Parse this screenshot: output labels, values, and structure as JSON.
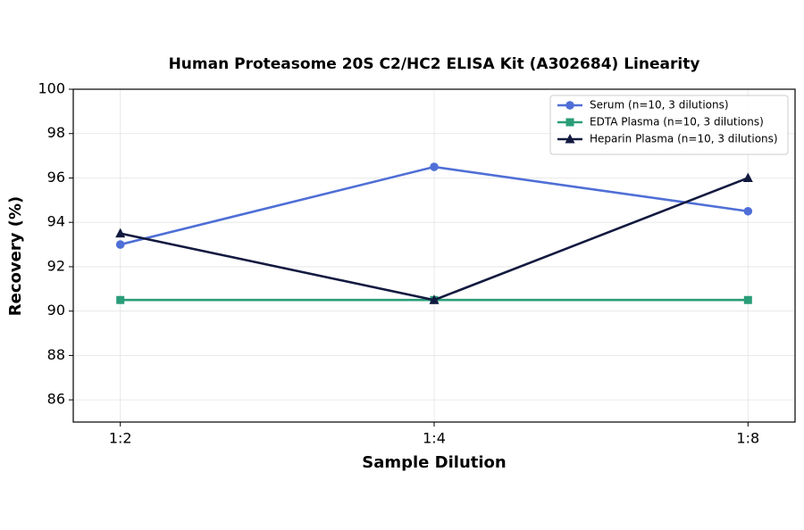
{
  "chart_data": {
    "type": "line",
    "title": "Human Proteasome 20S C2/HC2 ELISA Kit (A302684) Linearity",
    "x_label": "Sample Dilution",
    "y_label": "Recovery (%)",
    "categories": [
      "1:2",
      "1:4",
      "1:8"
    ],
    "series": [
      {
        "name": "Serum (n=10, 3 dilutions)",
        "color": "#4f6fd6",
        "marker": "circle",
        "values": [
          93,
          96.5,
          94.5
        ]
      },
      {
        "name": "EDTA Plasma (n=10, 3 dilutions)",
        "color": "#2a9d78",
        "marker": "square",
        "values": [
          90.5,
          90.5,
          90.5
        ]
      },
      {
        "name": "Heparin Plasma (n=10, 3 dilutions)",
        "color": "#121a40",
        "marker": "triangle",
        "values": [
          93.5,
          90.5,
          96
        ]
      }
    ],
    "ylim": [
      85,
      100
    ],
    "yticks": [
      86,
      88,
      90,
      92,
      94,
      96,
      98,
      100
    ],
    "grid": true,
    "legend": "upper-right"
  }
}
